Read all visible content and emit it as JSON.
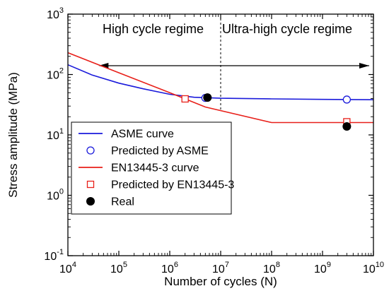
{
  "chart_data": {
    "type": "line",
    "xlabel": "Number of cycles (N)",
    "ylabel": "Stress amplitude (MPa)",
    "x_scale": "log",
    "y_scale": "log",
    "xlim": [
      10000,
      10000000000
    ],
    "ylim": [
      0.1,
      1000
    ],
    "x_ticks": [
      {
        "base": "10",
        "exp": "4"
      },
      {
        "base": "10",
        "exp": "5"
      },
      {
        "base": "10",
        "exp": "6"
      },
      {
        "base": "10",
        "exp": "7"
      },
      {
        "base": "10",
        "exp": "8"
      },
      {
        "base": "10",
        "exp": "9"
      },
      {
        "base": "10",
        "exp": "10"
      }
    ],
    "y_ticks": [
      {
        "base": "10",
        "exp": "-1"
      },
      {
        "base": "10",
        "exp": "0"
      },
      {
        "base": "10",
        "exp": "1"
      },
      {
        "base": "10",
        "exp": "2"
      },
      {
        "base": "10",
        "exp": "3"
      }
    ],
    "annotations": {
      "left_regime": "High cycle regime",
      "right_regime": "Ultra-high cycle regime",
      "divider_x": 10000000,
      "arrow_y": 140,
      "arrow_x_range": [
        40000,
        10000000000
      ]
    },
    "legend_position": "bottom-left",
    "colors": {
      "asme": "#1a1adb",
      "en": "#e8201a",
      "real": "#000000"
    },
    "series": [
      {
        "name": "ASME curve",
        "kind": "line",
        "color": "#1a1adb",
        "x": [
          10000,
          30000,
          100000,
          300000,
          1000000,
          3000000,
          10000000,
          100000000,
          1000000000,
          10000000000
        ],
        "y": [
          145,
          98,
          72,
          58,
          47,
          42,
          40.5,
          39.5,
          38.8,
          38.2
        ]
      },
      {
        "name": "Predicted by ASME",
        "kind": "marker",
        "marker": "open-circle",
        "color": "#1a1adb",
        "x": [
          5000000,
          3000000000
        ],
        "y": [
          41,
          38.5
        ]
      },
      {
        "name": "EN13445-3 curve",
        "kind": "line",
        "color": "#e8201a",
        "x": [
          10000,
          100000,
          1000000,
          5000000,
          100000000,
          10000000000
        ],
        "y": [
          230,
          107,
          50,
          29,
          16,
          16
        ]
      },
      {
        "name": "Predicted by EN13445-3",
        "kind": "marker",
        "marker": "open-square",
        "color": "#e8201a",
        "x": [
          2000000,
          3000000000
        ],
        "y": [
          39.5,
          16.5
        ]
      },
      {
        "name": "Real",
        "kind": "marker",
        "marker": "filled-circle",
        "color": "#000000",
        "x": [
          5500000,
          3000000000
        ],
        "y": [
          41.5,
          13.8
        ]
      }
    ]
  }
}
